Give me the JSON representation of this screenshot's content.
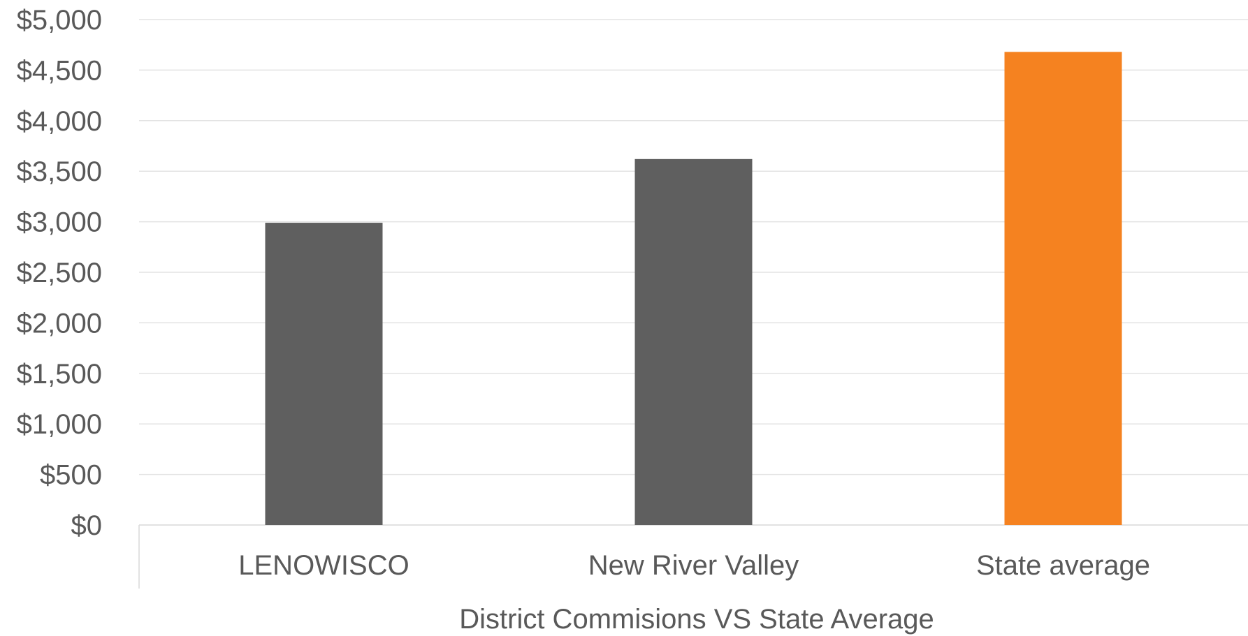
{
  "chart_data": {
    "type": "bar",
    "title": "",
    "xlabel": "District Commisions VS State Average",
    "ylabel": "",
    "categories": [
      "LENOWISCO",
      "New River Valley",
      "State average"
    ],
    "values": [
      2990,
      3620,
      4680
    ],
    "colors": [
      "#5f5f5f",
      "#5f5f5f",
      "#f58220"
    ],
    "ylim": [
      0,
      5000
    ],
    "yticks": [
      0,
      500,
      1000,
      1500,
      2000,
      2500,
      3000,
      3500,
      4000,
      4500,
      5000
    ],
    "ytick_labels": [
      "$0",
      "$500",
      "$1,000",
      "$1,500",
      "$2,000",
      "$2,500",
      "$3,000",
      "$3,500",
      "$4,000",
      "$4,500",
      "$5,000"
    ],
    "grid": true,
    "legend": "none",
    "gridline_color": "#e3e3e3",
    "text_color": "#595959"
  }
}
